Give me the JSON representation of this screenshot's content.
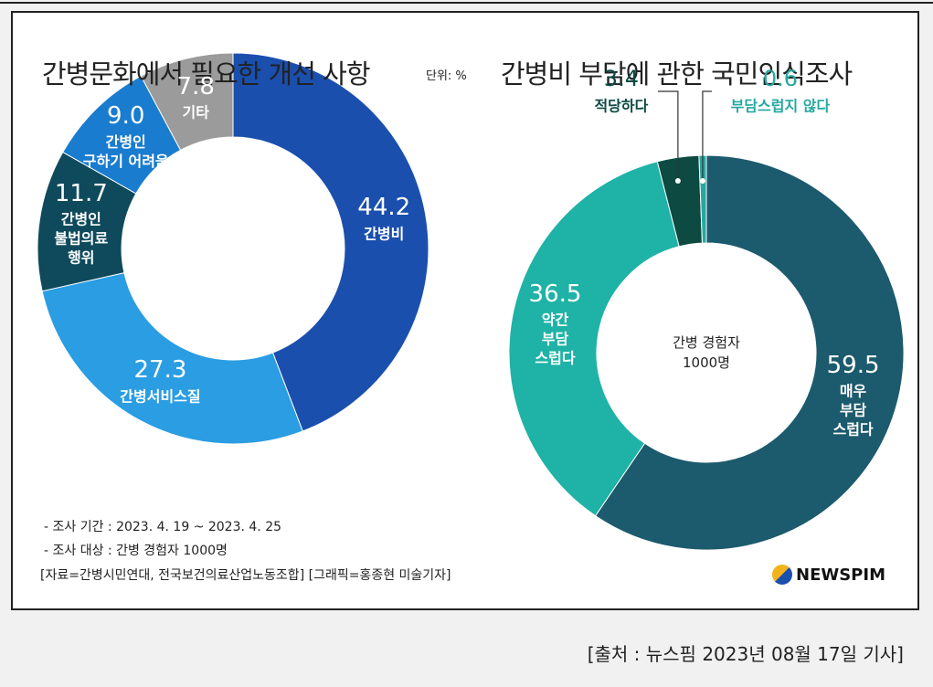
{
  "chart_data": [
    {
      "type": "donut",
      "title": "간병문화에서 필요한 개선 사항",
      "categories": [
        "간병비",
        "간병서비스질",
        "간병인\n불법의료\n행위",
        "간병인\n구하기 어려움",
        "기타"
      ],
      "values": [
        44.2,
        27.3,
        11.7,
        9.0,
        7.8
      ],
      "value_labels": [
        "44.2",
        "27.3",
        "11.7",
        "9.0",
        "7.8"
      ],
      "colors": [
        "#1b4fae",
        "#2a9de3",
        "#0e4a5c",
        "#1a7ccf",
        "#9b9b9b"
      ]
    },
    {
      "type": "donut",
      "title": "간병비 부담에 관한 국민인식조사",
      "center_label": "간병 경험자\n1000명",
      "categories": [
        "매우\n부담\n스럽다",
        "약간\n부담\n스럽다",
        "적당하다",
        "부담스럽지 않다"
      ],
      "values": [
        59.5,
        36.5,
        3.4,
        0.6
      ],
      "colors": [
        "#1c5a6d",
        "#1fb2a6",
        "#0c4a42",
        "#26a8a0"
      ]
    }
  ],
  "unit": "단위: %",
  "notes": [
    "- 조사 기간 : 2023. 4. 19 ~ 2023. 4. 25",
    "- 조사 대상 : 간병 경험자 1000명",
    "[자료=간병시민연대, 전국보건의료산업노동조합] [그래픽=홍종현 미술기자]"
  ],
  "logo": "NEWSPIM",
  "caption": "[출처 : 뉴스핌 2023년 08월 17일 기사]"
}
